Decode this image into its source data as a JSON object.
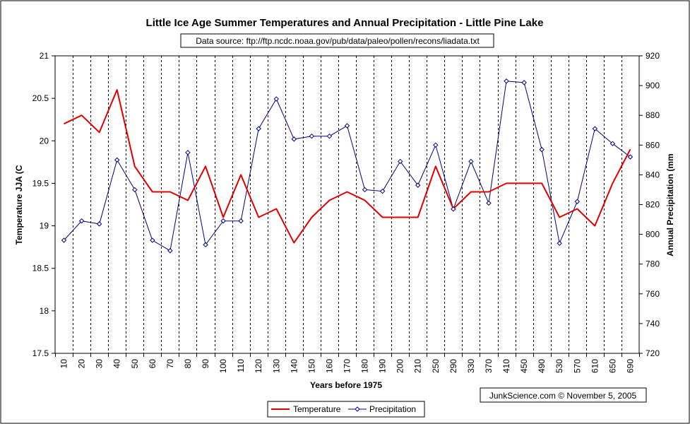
{
  "chart_data": {
    "type": "line",
    "title": "Little Ice Age Summer Temperatures and Annual Precipitation - Little Pine Lake",
    "subtitle": "Data source: ftp://ftp.ncdc.noaa.gov/pub/data/paleo/pollen/recons/liadata.txt",
    "xlabel": "Years before 1975",
    "ylabel_left": "Temperature JJA (C",
    "ylabel_right": "Annual Precipitation (mm",
    "categories": [
      "10",
      "20",
      "30",
      "40",
      "50",
      "60",
      "70",
      "80",
      "90",
      "100",
      "110",
      "120",
      "130",
      "140",
      "150",
      "160",
      "170",
      "180",
      "190",
      "200",
      "210",
      "250",
      "290",
      "330",
      "370",
      "410",
      "450",
      "490",
      "530",
      "570",
      "610",
      "650",
      "690"
    ],
    "ylim_left": [
      17.5,
      21
    ],
    "yticks_left": [
      "17.5",
      "18",
      "18.5",
      "19",
      "19.5",
      "20",
      "20.5",
      "21"
    ],
    "ylim_right": [
      720,
      920
    ],
    "yticks_right": [
      "720",
      "740",
      "760",
      "780",
      "800",
      "820",
      "840",
      "860",
      "880",
      "900",
      "920"
    ],
    "grid": "vertical dashed between categories",
    "legend_position": "bottom",
    "series": [
      {
        "name": "Temperature",
        "axis": "left",
        "color": "#e00000",
        "marker": "none",
        "values": [
          20.2,
          20.3,
          20.1,
          20.6,
          19.7,
          19.4,
          19.4,
          19.3,
          19.7,
          19.1,
          19.6,
          19.1,
          19.2,
          18.8,
          19.1,
          19.3,
          19.4,
          19.3,
          19.1,
          19.1,
          19.1,
          19.7,
          19.2,
          19.4,
          19.4,
          19.5,
          19.5,
          19.5,
          19.1,
          19.2,
          19.0,
          19.5,
          19.9
        ]
      },
      {
        "name": "Precipitation",
        "axis": "right",
        "color": "#000080",
        "marker": "diamond",
        "values": [
          796,
          809,
          807,
          850,
          830,
          796,
          789,
          855,
          793,
          809,
          809,
          871,
          891,
          864,
          866,
          866,
          873,
          830,
          829,
          849,
          833,
          860,
          817,
          849,
          821,
          903,
          902,
          857,
          794,
          822,
          871,
          861,
          852
        ]
      }
    ]
  },
  "credit": "JunkScience.com ©  November 5, 2005"
}
